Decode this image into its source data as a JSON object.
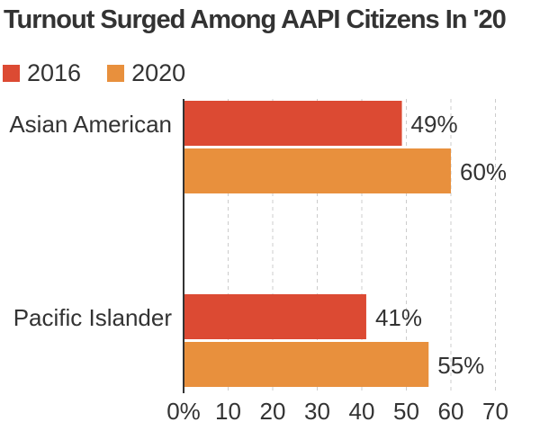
{
  "chart_data": {
    "type": "bar",
    "orientation": "horizontal",
    "title": "Turnout Surged Among AAPI Citizens In '20",
    "categories": [
      "Asian American",
      "Pacific Islander"
    ],
    "series": [
      {
        "name": "2016",
        "color": "#dc4a33",
        "values": [
          49,
          41
        ],
        "labels": [
          "49%",
          "41%"
        ]
      },
      {
        "name": "2020",
        "color": "#e8903d",
        "values": [
          60,
          55
        ],
        "labels": [
          "60%",
          "55%"
        ]
      }
    ],
    "xlim": [
      0,
      70
    ],
    "xticks": [
      0,
      10,
      20,
      30,
      40,
      50,
      60,
      70
    ],
    "xtick_labels": [
      "0%",
      "10",
      "20",
      "30",
      "40",
      "50",
      "60",
      "70"
    ],
    "grid": true,
    "legend": "top-left"
  }
}
